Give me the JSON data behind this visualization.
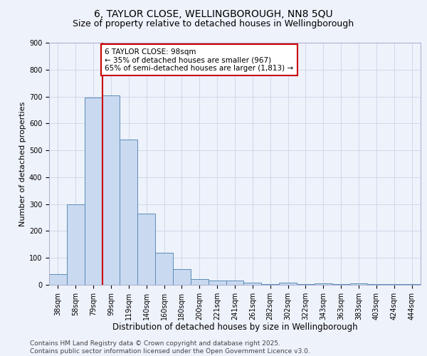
{
  "title1": "6, TAYLOR CLOSE, WELLINGBOROUGH, NN8 5QU",
  "title2": "Size of property relative to detached houses in Wellingborough",
  "xlabel": "Distribution of detached houses by size in Wellingborough",
  "ylabel": "Number of detached properties",
  "categories": [
    "38sqm",
    "58sqm",
    "79sqm",
    "99sqm",
    "119sqm",
    "140sqm",
    "160sqm",
    "180sqm",
    "200sqm",
    "221sqm",
    "241sqm",
    "261sqm",
    "282sqm",
    "302sqm",
    "322sqm",
    "343sqm",
    "363sqm",
    "383sqm",
    "403sqm",
    "424sqm",
    "444sqm"
  ],
  "values": [
    40,
    300,
    695,
    705,
    540,
    265,
    120,
    57,
    20,
    15,
    15,
    7,
    2,
    7,
    2,
    5,
    2,
    5,
    2,
    2,
    2
  ],
  "bar_color": "#c9d9f0",
  "bar_edge_color": "#5b8db8",
  "ylim": [
    0,
    900
  ],
  "yticks": [
    0,
    100,
    200,
    300,
    400,
    500,
    600,
    700,
    800,
    900
  ],
  "annotation_text_line1": "6 TAYLOR CLOSE: 98sqm",
  "annotation_text_line2": "← 35% of detached houses are smaller (967)",
  "annotation_text_line3": "65% of semi-detached houses are larger (1,813) →",
  "annotation_box_color": "#ffffff",
  "annotation_box_edge": "#cc0000",
  "vline_color": "#cc0000",
  "vline_x": 2.5,
  "background_color": "#eef2fb",
  "grid_color": "#d0d8e8",
  "footer1": "Contains HM Land Registry data © Crown copyright and database right 2025.",
  "footer2": "Contains public sector information licensed under the Open Government Licence v3.0.",
  "title1_fontsize": 10,
  "title2_fontsize": 9,
  "xlabel_fontsize": 8.5,
  "ylabel_fontsize": 8,
  "tick_fontsize": 7,
  "annotation_fontsize": 7.5,
  "footer_fontsize": 6.5
}
